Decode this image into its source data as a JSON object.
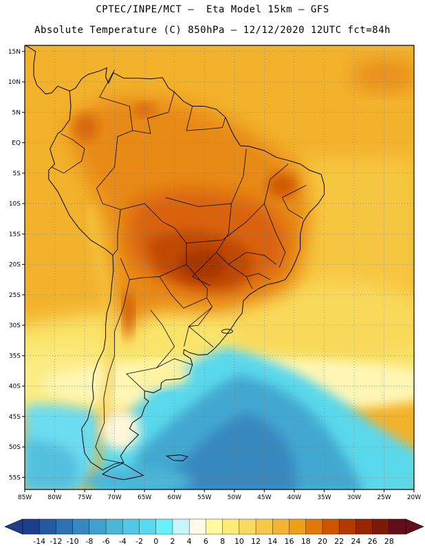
{
  "title_line1": "CPTEC/INPE/MCT –  Eta Model 15km – GFS",
  "title_line2": "Absolute Temperature (C) 850hPa – 12/12/2020 12UTC fct=84h",
  "map": {
    "lon_range": [
      -85,
      -20
    ],
    "lat_range": [
      -57,
      16
    ],
    "lat_ticks": [
      {
        "lat": 15,
        "label": "15N"
      },
      {
        "lat": 10,
        "label": "10N"
      },
      {
        "lat": 5,
        "label": "5N"
      },
      {
        "lat": 0,
        "label": "EQ"
      },
      {
        "lat": -5,
        "label": "5S"
      },
      {
        "lat": -10,
        "label": "10S"
      },
      {
        "lat": -15,
        "label": "15S"
      },
      {
        "lat": -20,
        "label": "20S"
      },
      {
        "lat": -25,
        "label": "25S"
      },
      {
        "lat": -30,
        "label": "30S"
      },
      {
        "lat": -35,
        "label": "35S"
      },
      {
        "lat": -40,
        "label": "40S"
      },
      {
        "lat": -45,
        "label": "45S"
      },
      {
        "lat": -50,
        "label": "50S"
      },
      {
        "lat": -55,
        "label": "55S"
      }
    ],
    "lon_ticks": [
      {
        "lon": -85,
        "label": "85W"
      },
      {
        "lon": -80,
        "label": "80W"
      },
      {
        "lon": -75,
        "label": "75W"
      },
      {
        "lon": -70,
        "label": "70W"
      },
      {
        "lon": -65,
        "label": "65W"
      },
      {
        "lon": -60,
        "label": "60W"
      },
      {
        "lon": -55,
        "label": "55W"
      },
      {
        "lon": -50,
        "label": "50W"
      },
      {
        "lon": -45,
        "label": "45W"
      },
      {
        "lon": -40,
        "label": "40W"
      },
      {
        "lon": -35,
        "label": "35W"
      },
      {
        "lon": -30,
        "label": "30W"
      },
      {
        "lon": -25,
        "label": "25W"
      },
      {
        "lon": -20,
        "label": "20W"
      }
    ],
    "grid": true,
    "coastline": [
      [
        -77.5,
        8.5
      ],
      [
        -79.5,
        9.3
      ],
      [
        -80.5,
        8.2
      ],
      [
        -81.5,
        8.0
      ],
      [
        -83.0,
        9.5
      ],
      [
        -83.5,
        11.0
      ],
      [
        -83.5,
        13.0
      ],
      [
        -83.2,
        15.0
      ],
      [
        -84.5,
        15.8
      ],
      [
        -85.0,
        16.0
      ]
    ],
    "south_america": [
      [
        -77.5,
        8.5
      ],
      [
        -76.5,
        9.0
      ],
      [
        -75.5,
        10.5
      ],
      [
        -74.5,
        11.2
      ],
      [
        -72.5,
        11.8
      ],
      [
        -71.3,
        12.3
      ],
      [
        -71.5,
        10.8
      ],
      [
        -71.0,
        9.8
      ],
      [
        -70.2,
        11.5
      ],
      [
        -68.5,
        10.6
      ],
      [
        -66.0,
        10.6
      ],
      [
        -64.0,
        10.5
      ],
      [
        -62.0,
        10.7
      ],
      [
        -61.0,
        9.0
      ],
      [
        -60.0,
        8.3
      ],
      [
        -58.5,
        6.8
      ],
      [
        -57.0,
        6.0
      ],
      [
        -55.0,
        6.0
      ],
      [
        -53.0,
        5.5
      ],
      [
        -51.5,
        4.2
      ],
      [
        -50.5,
        2.0
      ],
      [
        -50.0,
        1.0
      ],
      [
        -49.0,
        -0.5
      ],
      [
        -47.5,
        -0.6
      ],
      [
        -45.0,
        -1.3
      ],
      [
        -43.0,
        -2.4
      ],
      [
        -41.0,
        -2.9
      ],
      [
        -39.0,
        -3.5
      ],
      [
        -37.5,
        -4.5
      ],
      [
        -35.5,
        -5.2
      ],
      [
        -35.0,
        -7.0
      ],
      [
        -35.0,
        -8.5
      ],
      [
        -36.0,
        -10.0
      ],
      [
        -37.5,
        -11.5
      ],
      [
        -38.5,
        -13.0
      ],
      [
        -39.0,
        -15.0
      ],
      [
        -39.0,
        -17.5
      ],
      [
        -39.8,
        -19.5
      ],
      [
        -40.5,
        -21.0
      ],
      [
        -41.5,
        -22.5
      ],
      [
        -43.0,
        -23.0
      ],
      [
        -44.5,
        -23.3
      ],
      [
        -46.0,
        -24.0
      ],
      [
        -47.5,
        -25.0
      ],
      [
        -48.5,
        -26.0
      ],
      [
        -48.7,
        -28.0
      ],
      [
        -49.5,
        -29.0
      ],
      [
        -50.5,
        -30.5
      ],
      [
        -51.5,
        -31.8
      ],
      [
        -52.5,
        -33.0
      ],
      [
        -53.5,
        -34.0
      ],
      [
        -54.5,
        -34.8
      ],
      [
        -56.0,
        -34.9
      ],
      [
        -57.5,
        -34.5
      ],
      [
        -58.4,
        -34.0
      ],
      [
        -58.5,
        -34.7
      ],
      [
        -57.3,
        -35.5
      ],
      [
        -57.0,
        -36.5
      ],
      [
        -57.5,
        -38.0
      ],
      [
        -59.0,
        -38.8
      ],
      [
        -61.5,
        -39.0
      ],
      [
        -62.2,
        -39.5
      ],
      [
        -62.3,
        -40.5
      ],
      [
        -63.5,
        -41.1
      ],
      [
        -65.0,
        -40.8
      ],
      [
        -65.0,
        -42.0
      ],
      [
        -64.3,
        -42.5
      ],
      [
        -65.0,
        -43.5
      ],
      [
        -65.5,
        -45.0
      ],
      [
        -67.0,
        -46.0
      ],
      [
        -67.5,
        -47.0
      ],
      [
        -66.0,
        -48.0
      ],
      [
        -68.0,
        -50.0
      ],
      [
        -69.0,
        -51.5
      ],
      [
        -68.5,
        -52.5
      ],
      [
        -70.0,
        -52.8
      ],
      [
        -72.0,
        -53.8
      ],
      [
        -74.0,
        -52.5
      ],
      [
        -75.0,
        -51.0
      ],
      [
        -75.3,
        -49.0
      ],
      [
        -75.5,
        -47.0
      ],
      [
        -74.5,
        -45.5
      ],
      [
        -74.0,
        -43.5
      ],
      [
        -73.5,
        -42.0
      ],
      [
        -73.7,
        -40.0
      ],
      [
        -73.5,
        -38.0
      ],
      [
        -72.8,
        -36.0
      ],
      [
        -71.8,
        -34.0
      ],
      [
        -71.5,
        -32.0
      ],
      [
        -71.5,
        -30.0
      ],
      [
        -71.3,
        -28.0
      ],
      [
        -70.7,
        -26.0
      ],
      [
        -70.5,
        -23.5
      ],
      [
        -70.2,
        -21.0
      ],
      [
        -70.3,
        -18.5
      ],
      [
        -71.5,
        -17.5
      ],
      [
        -74.0,
        -16.0
      ],
      [
        -76.0,
        -14.0
      ],
      [
        -77.5,
        -12.0
      ],
      [
        -78.5,
        -10.0
      ],
      [
        -79.5,
        -8.0
      ],
      [
        -81.0,
        -6.0
      ],
      [
        -81.0,
        -4.5
      ],
      [
        -80.0,
        -3.5
      ],
      [
        -80.5,
        -2.0
      ],
      [
        -80.8,
        -1.0
      ],
      [
        -80.0,
        0.5
      ],
      [
        -79.5,
        1.5
      ],
      [
        -78.8,
        2.0
      ],
      [
        -77.5,
        3.8
      ],
      [
        -77.3,
        6.0
      ],
      [
        -77.5,
        8.5
      ]
    ],
    "tierra_del_fuego": [
      [
        -68.6,
        -52.7
      ],
      [
        -65.2,
        -54.7
      ],
      [
        -66.5,
        -55.0
      ],
      [
        -68.5,
        -55.4
      ],
      [
        -70.5,
        -55.0
      ],
      [
        -72.0,
        -54.5
      ],
      [
        -70.5,
        -53.5
      ],
      [
        -68.6,
        -52.7
      ]
    ],
    "falklands": [
      [
        -61.3,
        -51.5
      ],
      [
        -59.0,
        -51.3
      ],
      [
        -57.8,
        -51.6
      ],
      [
        -58.6,
        -52.3
      ],
      [
        -60.2,
        -52.2
      ],
      [
        -61.3,
        -51.5
      ]
    ]
  },
  "colorbar": {
    "labels": [
      "-14",
      "-12",
      "-10",
      "-8",
      "-6",
      "-4",
      "-2",
      "0",
      "2",
      "4",
      "6",
      "8",
      "10",
      "12",
      "14",
      "16",
      "18",
      "20",
      "22",
      "24",
      "26",
      "28"
    ],
    "colors": [
      "#1c3e8c",
      "#245aa0",
      "#2d72b0",
      "#3788c0",
      "#42a0cc",
      "#4cb6d8",
      "#52c8e4",
      "#5ad8ec",
      "#6af0f8",
      "#c8f4fa",
      "#fffae6",
      "#fffaa0",
      "#fceb78",
      "#f9da60",
      "#f5c848",
      "#f2b432",
      "#eca01a",
      "#e27808",
      "#cf5402",
      "#b23a00",
      "#962600",
      "#7a1a08",
      "#620e18"
    ],
    "low_color": "#1c3e8c",
    "high_color": "#620e18"
  }
}
